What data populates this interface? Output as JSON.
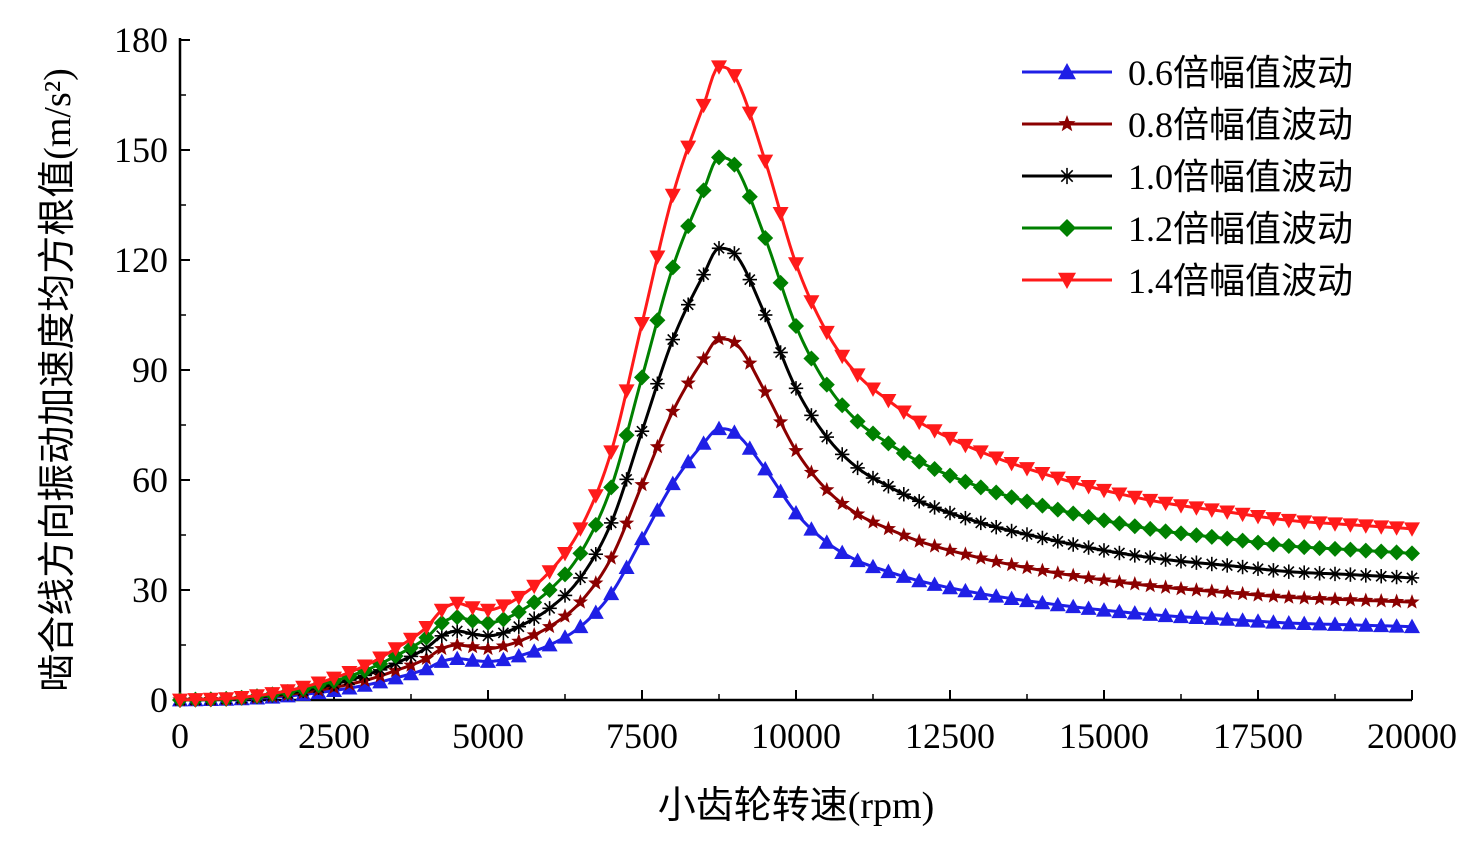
{
  "chart_data": {
    "type": "line",
    "xlabel": "小齿轮转速(rpm)",
    "ylabel": "啮合线方向振动加速度均方根值(m/s²)",
    "xlim": [
      0,
      20000
    ],
    "ylim": [
      0,
      180
    ],
    "xticks": [
      0,
      2500,
      5000,
      7500,
      10000,
      12500,
      15000,
      17500,
      20000
    ],
    "yticks": [
      0,
      30,
      60,
      90,
      120,
      150,
      180
    ],
    "xtick_labels": [
      "0",
      "2500",
      "5000",
      "7500",
      "10000",
      "12500",
      "15000",
      "17500",
      "20000"
    ],
    "ytick_labels": [
      "0",
      "30",
      "60",
      "90",
      "120",
      "150",
      "180"
    ],
    "grid": false,
    "legend_position": "top-right",
    "x": [
      0,
      1000,
      2000,
      3000,
      3500,
      4000,
      4250,
      4500,
      4750,
      5000,
      5250,
      5500,
      6000,
      6500,
      7000,
      7500,
      8000,
      8500,
      8750,
      9000,
      9500,
      10000,
      10500,
      11000,
      11500,
      12000,
      13000,
      14000,
      15000,
      16000,
      17000,
      18000,
      19000,
      20000
    ],
    "series": [
      {
        "name": "0.6倍幅值波动",
        "color": "#1f1fe6",
        "marker": "triangle-up",
        "values": [
          0,
          0.3,
          1.5,
          4,
          6,
          8.5,
          10.5,
          11.3,
          10.8,
          10.5,
          11,
          12,
          15,
          20,
          29,
          44,
          59,
          70,
          74,
          73,
          63,
          51,
          43,
          38,
          35,
          32.5,
          29,
          26.5,
          24.5,
          23,
          22,
          21,
          20.5,
          20
        ]
      },
      {
        "name": "0.8倍幅值波动",
        "color": "#8b0000",
        "marker": "star",
        "values": [
          0,
          0.4,
          2,
          5.3,
          8,
          11.3,
          14,
          15,
          14.5,
          14,
          14.7,
          16,
          20,
          26.7,
          38.7,
          58.7,
          78.7,
          93,
          98.5,
          97.5,
          84,
          68,
          57.3,
          50.7,
          46.7,
          43.3,
          38.7,
          35.3,
          32.7,
          30.7,
          29.3,
          28,
          27.3,
          26.7
        ]
      },
      {
        "name": "1.0倍幅值波动",
        "color": "#000000",
        "marker": "asterisk",
        "values": [
          0,
          0.5,
          2.5,
          6.7,
          10,
          14.2,
          17.5,
          18.8,
          18,
          17.5,
          18.3,
          20,
          25,
          33.3,
          48.3,
          73.3,
          98.3,
          116,
          123.2,
          121.8,
          105,
          85,
          71.7,
          63.3,
          58.3,
          54.2,
          48.3,
          44.2,
          40.8,
          38.3,
          36.7,
          35,
          34.2,
          33.3
        ]
      },
      {
        "name": "1.2倍幅值波动",
        "color": "#008000",
        "marker": "diamond",
        "values": [
          0,
          0.6,
          3,
          8,
          12,
          17,
          21,
          22.6,
          21.6,
          21,
          22,
          24,
          30,
          40,
          58,
          88,
          118,
          139,
          148,
          146,
          126,
          102,
          86,
          76,
          70,
          65,
          58,
          53,
          49,
          46,
          44,
          42,
          41,
          40
        ]
      },
      {
        "name": "1.4倍幅值波动",
        "color": "#ff1a1a",
        "marker": "triangle-down",
        "values": [
          0,
          0.7,
          3.5,
          9.3,
          14,
          19.8,
          24.5,
          26.4,
          25.2,
          24.5,
          25.7,
          28,
          35,
          46.7,
          67.7,
          102.7,
          137.7,
          162.2,
          172.7,
          170.3,
          147,
          119,
          100.3,
          88.7,
          81.7,
          75.8,
          67.7,
          61.8,
          57.2,
          53.7,
          51.3,
          49,
          47.8,
          46.7
        ]
      }
    ]
  }
}
